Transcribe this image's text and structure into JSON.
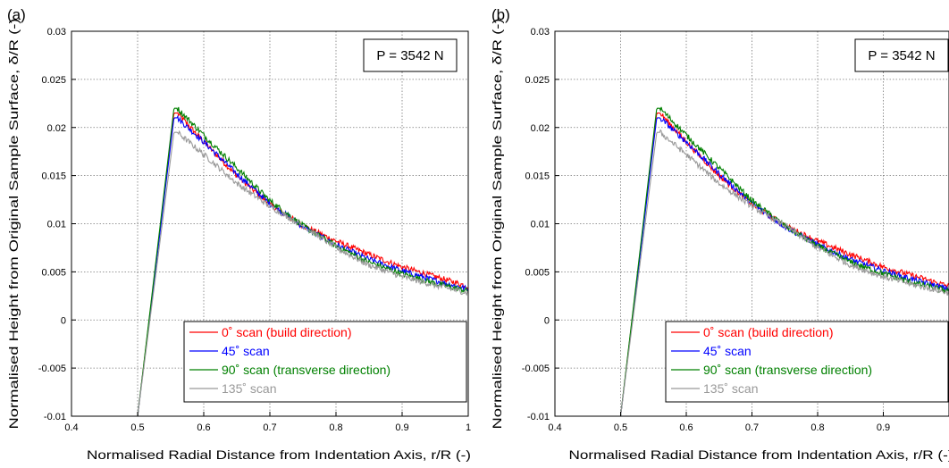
{
  "chart_data": [
    {
      "type": "line",
      "panel_label": "(a)",
      "xlabel": "Normalised Radial Distance from Indentation Axis, r/R (-)",
      "ylabel": "Normalised Height from Original Sample Surface, δ/R (-)",
      "xlim": [
        0.4,
        1.0
      ],
      "ylim": [
        -0.01,
        0.03
      ],
      "x_ticks": [
        "0.4",
        "0.5",
        "0.6",
        "0.7",
        "0.8",
        "0.9",
        "1"
      ],
      "y_ticks": [
        "-0.01",
        "-0.005",
        "0",
        "0.005",
        "0.01",
        "0.015",
        "0.02",
        "0.025",
        "0.03"
      ],
      "grid": true,
      "annotation": "P = 3542 N",
      "legend_position": "bottom-right",
      "series": [
        {
          "name": "0˚ scan (build direction)",
          "color": "#ff0000",
          "x": [
            0.5,
            0.555,
            0.56,
            0.6,
            0.65,
            0.7,
            0.75,
            0.8,
            0.85,
            0.9,
            0.95,
            1.0
          ],
          "y": [
            -0.01,
            0.0215,
            0.0215,
            0.0185,
            0.015,
            0.012,
            0.0098,
            0.0082,
            0.0068,
            0.0055,
            0.0045,
            0.0035
          ]
        },
        {
          "name": "45˚ scan",
          "color": "#0000ff",
          "x": [
            0.5,
            0.555,
            0.56,
            0.6,
            0.65,
            0.7,
            0.75,
            0.8,
            0.85,
            0.9,
            0.95,
            1.0
          ],
          "y": [
            -0.01,
            0.021,
            0.021,
            0.0185,
            0.0152,
            0.0121,
            0.0097,
            0.0078,
            0.0063,
            0.0051,
            0.0041,
            0.0032
          ]
        },
        {
          "name": "90˚ scan (transverse direction)",
          "color": "#008000",
          "x": [
            0.5,
            0.555,
            0.56,
            0.6,
            0.65,
            0.7,
            0.75,
            0.8,
            0.85,
            0.9,
            0.95,
            1.0
          ],
          "y": [
            -0.01,
            0.022,
            0.022,
            0.0192,
            0.0158,
            0.0124,
            0.0098,
            0.0077,
            0.006,
            0.0048,
            0.0038,
            0.003
          ]
        },
        {
          "name": "135˚ scan",
          "color": "#999999",
          "x": [
            0.5,
            0.555,
            0.56,
            0.6,
            0.65,
            0.7,
            0.75,
            0.8,
            0.85,
            0.9,
            0.95,
            1.0
          ],
          "y": [
            -0.01,
            0.0195,
            0.0195,
            0.0172,
            0.0142,
            0.0118,
            0.0098,
            0.0075,
            0.0057,
            0.0045,
            0.0036,
            0.0028
          ]
        }
      ]
    },
    {
      "type": "line",
      "panel_label": "(b)",
      "xlabel": "Normalised Radial Distance from Indentation Axis, r/R (-)",
      "ylabel": "Normalised Height from Original Sample Surface, δ/R (-)",
      "xlim": [
        0.4,
        1.0
      ],
      "ylim": [
        -0.01,
        0.03
      ],
      "x_ticks": [
        "0.4",
        "0.5",
        "0.6",
        "0.7",
        "0.8",
        "0.9"
      ],
      "y_ticks": [
        "-0.01",
        "-0.005",
        "0",
        "0.005",
        "0.01",
        "0.015",
        "0.02",
        "0.025",
        "0.03"
      ],
      "grid": true,
      "annotation": "P = 3542 N",
      "legend_position": "bottom-right",
      "series": [
        {
          "name": "0˚ scan (build direction)",
          "color": "#ff0000",
          "x": [
            0.5,
            0.555,
            0.56,
            0.6,
            0.65,
            0.7,
            0.75,
            0.8,
            0.85,
            0.9,
            0.95,
            1.0
          ],
          "y": [
            -0.01,
            0.0215,
            0.0215,
            0.0185,
            0.015,
            0.012,
            0.0098,
            0.0082,
            0.0068,
            0.0055,
            0.0045,
            0.0035
          ]
        },
        {
          "name": "45˚ scan",
          "color": "#0000ff",
          "x": [
            0.5,
            0.555,
            0.56,
            0.6,
            0.65,
            0.7,
            0.75,
            0.8,
            0.85,
            0.9,
            0.95,
            1.0
          ],
          "y": [
            -0.01,
            0.021,
            0.021,
            0.0185,
            0.0152,
            0.0121,
            0.0097,
            0.0078,
            0.0063,
            0.0051,
            0.0041,
            0.0032
          ]
        },
        {
          "name": "90˚ scan (transverse direction)",
          "color": "#008000",
          "x": [
            0.5,
            0.555,
            0.56,
            0.6,
            0.65,
            0.7,
            0.75,
            0.8,
            0.85,
            0.9,
            0.95,
            1.0
          ],
          "y": [
            -0.01,
            0.022,
            0.022,
            0.0192,
            0.0158,
            0.0124,
            0.0098,
            0.0077,
            0.006,
            0.0048,
            0.0038,
            0.003
          ]
        },
        {
          "name": "135˚ scan",
          "color": "#999999",
          "x": [
            0.5,
            0.555,
            0.56,
            0.6,
            0.65,
            0.7,
            0.75,
            0.8,
            0.85,
            0.9,
            0.95,
            1.0
          ],
          "y": [
            -0.01,
            0.0195,
            0.0195,
            0.0172,
            0.0142,
            0.0118,
            0.0098,
            0.0075,
            0.0057,
            0.0045,
            0.0036,
            0.0028
          ]
        }
      ]
    }
  ]
}
